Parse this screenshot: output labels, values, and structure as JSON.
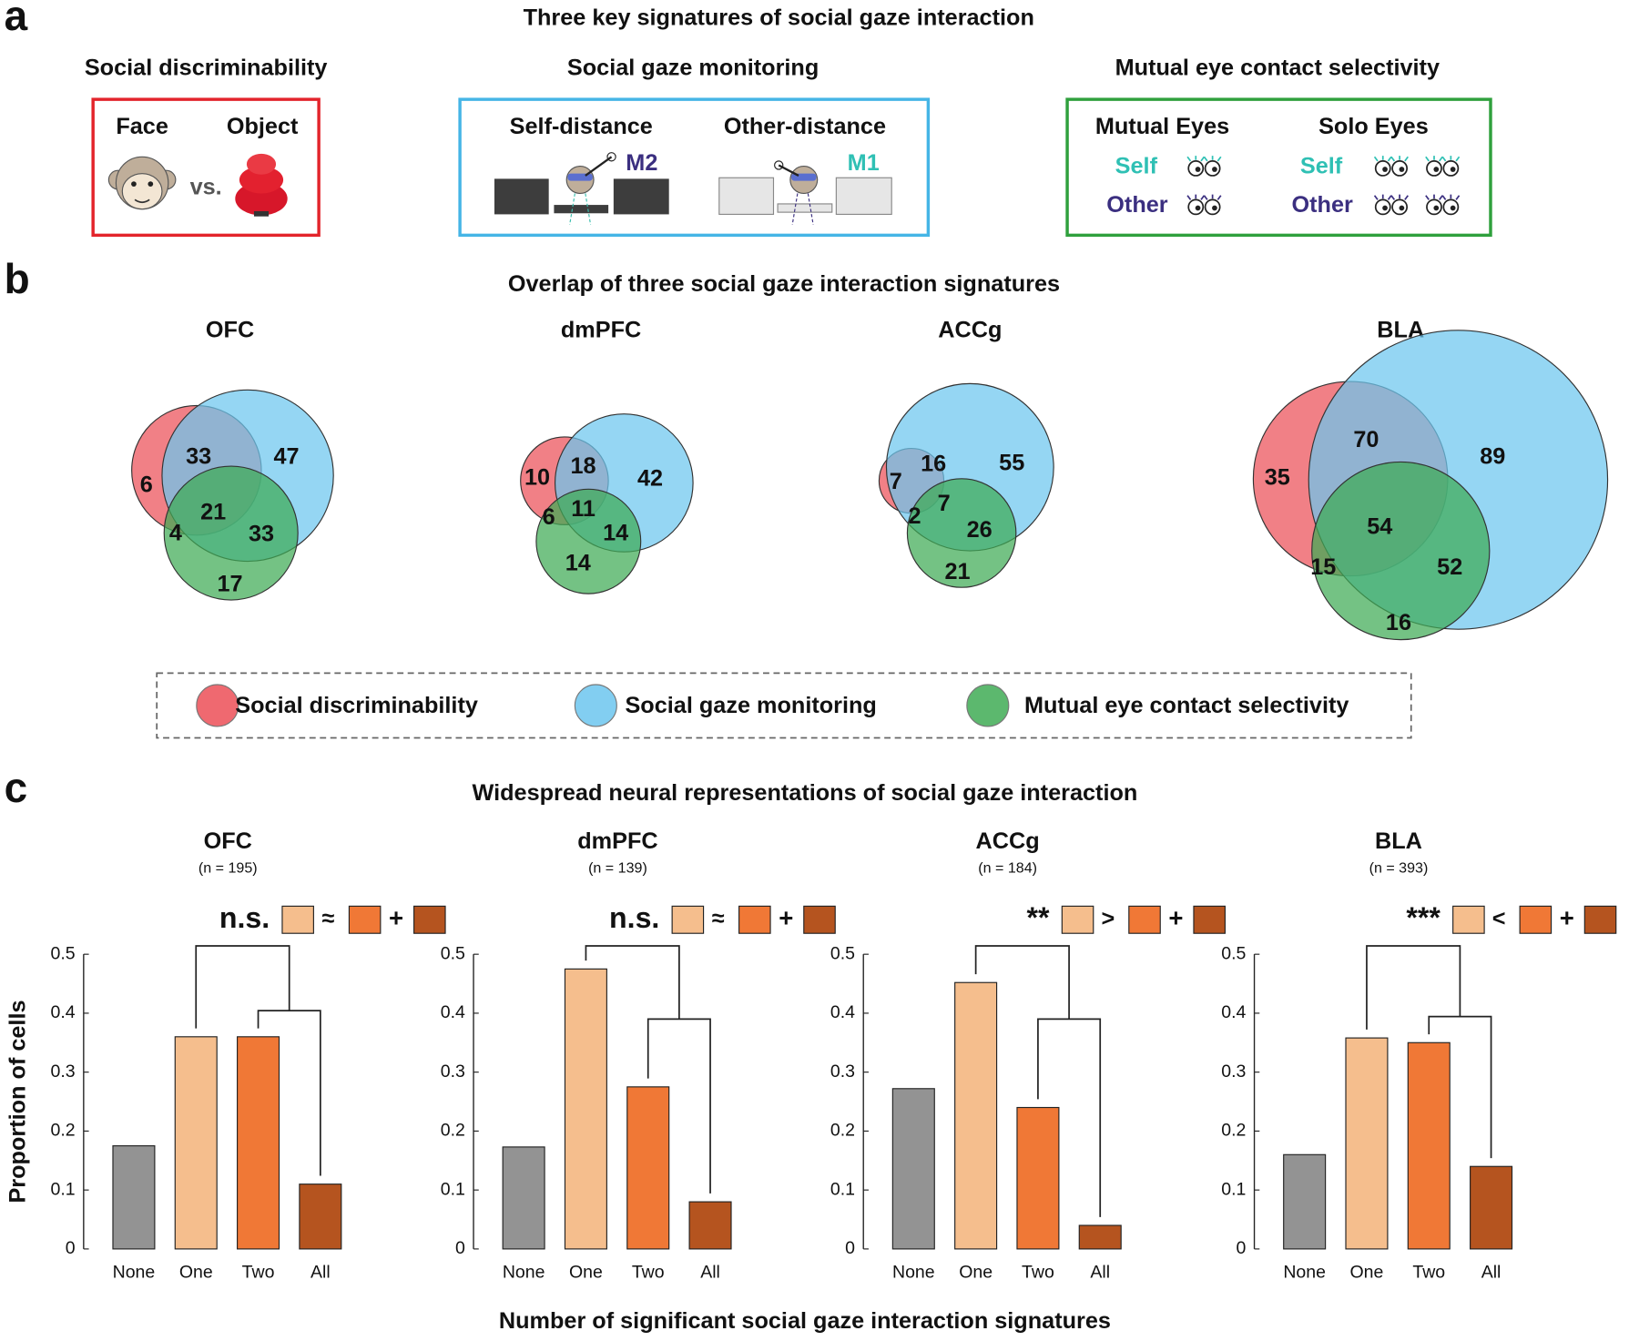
{
  "panel_a": {
    "label": "a",
    "title": "Three key signatures of social gaze interaction",
    "discriminability": {
      "title": "Social discriminability",
      "face": "Face",
      "object": "Object",
      "vs": "vs."
    },
    "monitoring": {
      "title": "Social gaze monitoring",
      "self": "Self-distance",
      "other": "Other-distance",
      "self_tag": "M2",
      "other_tag": "M1"
    },
    "mutual": {
      "title": "Mutual eye contact selectivity",
      "mutual": "Mutual Eyes",
      "solo": "Solo Eyes",
      "self": "Self",
      "other": "Other"
    }
  },
  "panel_b": {
    "label": "b",
    "title": "Overlap of three social gaze interaction signatures",
    "legend": [
      {
        "name": "Social discriminability",
        "color": "#ec4f57"
      },
      {
        "name": "Social gaze monitoring",
        "color": "#6cc6ee"
      },
      {
        "name": "Mutual eye contact selectivity",
        "color": "#3fab55"
      }
    ]
  },
  "panel_c": {
    "label": "c",
    "title": "Widespread neural representations of social gaze interaction",
    "xlabel": "Number of significant social gaze interaction signatures",
    "ylabel": "Proportion of cells"
  },
  "chart_data": [
    {
      "type": "venn",
      "title": "OFC",
      "values": [
        6,
        33,
        47,
        21,
        4,
        33,
        17
      ]
    },
    {
      "type": "venn",
      "title": "dmPFC",
      "values": [
        10,
        18,
        42,
        11,
        6,
        14,
        14
      ]
    },
    {
      "type": "venn",
      "title": "ACCg",
      "values": [
        7,
        16,
        55,
        7,
        2,
        26,
        21
      ]
    },
    {
      "type": "venn",
      "title": "BLA",
      "values": [
        35,
        70,
        89,
        54,
        15,
        52,
        16
      ]
    },
    {
      "type": "bar",
      "title": "OFC",
      "subtitle": "(n = 195)",
      "categories": [
        "None",
        "One",
        "Two",
        "All"
      ],
      "values": [
        0.175,
        0.36,
        0.36,
        0.11
      ],
      "colors": [
        "#939393",
        "#f5be8d",
        "#f07836",
        "#b5541f"
      ],
      "ylim": [
        0,
        0.5
      ],
      "yticks": [
        0,
        0.1,
        0.2,
        0.3,
        0.4,
        0.5
      ],
      "significance": "n.s.",
      "relation": "≈",
      "plus": "+"
    },
    {
      "type": "bar",
      "title": "dmPFC",
      "subtitle": "(n = 139)",
      "categories": [
        "None",
        "One",
        "Two",
        "All"
      ],
      "values": [
        0.173,
        0.475,
        0.275,
        0.08
      ],
      "colors": [
        "#939393",
        "#f5be8d",
        "#f07836",
        "#b5541f"
      ],
      "ylim": [
        0,
        0.5
      ],
      "yticks": [
        0,
        0.1,
        0.2,
        0.3,
        0.4,
        0.5
      ],
      "significance": "n.s.",
      "relation": "≈",
      "plus": "+"
    },
    {
      "type": "bar",
      "title": "ACCg",
      "subtitle": "(n = 184)",
      "categories": [
        "None",
        "One",
        "Two",
        "All"
      ],
      "values": [
        0.272,
        0.452,
        0.24,
        0.04
      ],
      "colors": [
        "#939393",
        "#f5be8d",
        "#f07836",
        "#b5541f"
      ],
      "ylim": [
        0,
        0.5
      ],
      "yticks": [
        0,
        0.1,
        0.2,
        0.3,
        0.4,
        0.5
      ],
      "significance": "**",
      "relation": ">",
      "plus": "+"
    },
    {
      "type": "bar",
      "title": "BLA",
      "subtitle": "(n = 393)",
      "categories": [
        "None",
        "One",
        "Two",
        "All"
      ],
      "values": [
        0.16,
        0.358,
        0.35,
        0.14
      ],
      "colors": [
        "#939393",
        "#f5be8d",
        "#f07836",
        "#b5541f"
      ],
      "ylim": [
        0,
        0.5
      ],
      "yticks": [
        0,
        0.1,
        0.2,
        0.3,
        0.4,
        0.5
      ],
      "significance": "***",
      "relation": "<",
      "plus": "+"
    }
  ]
}
